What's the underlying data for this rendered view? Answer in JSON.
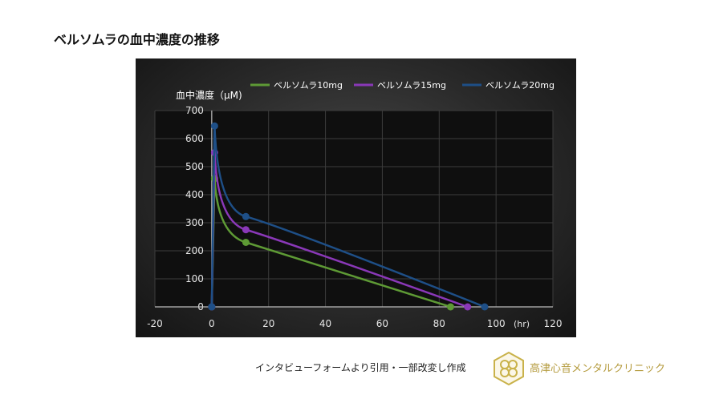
{
  "page_title": "ベルソムラの血中濃度の推移",
  "source_note": "インタビューフォームより引用・一部改変し作成",
  "clinic_name": "高津心音メンタルクリニック",
  "logo_icon": "clover-hexagon-icon",
  "colors": {
    "s10": "#5e9a35",
    "s15": "#8a38b8",
    "s20": "#1e4f87",
    "logo": "#c9b24a",
    "panel": "#2a2a2a"
  },
  "chart_data": {
    "type": "line",
    "ylabel": "血中濃度（μM)",
    "xlabel": "(hr)",
    "xlim": [
      -20,
      120
    ],
    "ylim": [
      0,
      700
    ],
    "x_ticks": [
      "-20",
      "0",
      "20",
      "40",
      "60",
      "80",
      "100",
      "120"
    ],
    "y_ticks": [
      "0",
      "100",
      "200",
      "300",
      "400",
      "500",
      "600",
      "700"
    ],
    "grid": true,
    "legend_position": "top",
    "series": [
      {
        "name": "ベルソムラ10mg",
        "points": [
          [
            0,
            0
          ],
          [
            1,
            458
          ],
          [
            12,
            230
          ],
          [
            84,
            0
          ]
        ]
      },
      {
        "name": "ベルソムラ15mg",
        "points": [
          [
            0,
            0
          ],
          [
            1,
            550
          ],
          [
            12,
            275
          ],
          [
            90,
            0
          ]
        ]
      },
      {
        "name": "ベルソムラ20mg",
        "points": [
          [
            0,
            0
          ],
          [
            1,
            645
          ],
          [
            12,
            322
          ],
          [
            96,
            0
          ]
        ]
      }
    ]
  }
}
